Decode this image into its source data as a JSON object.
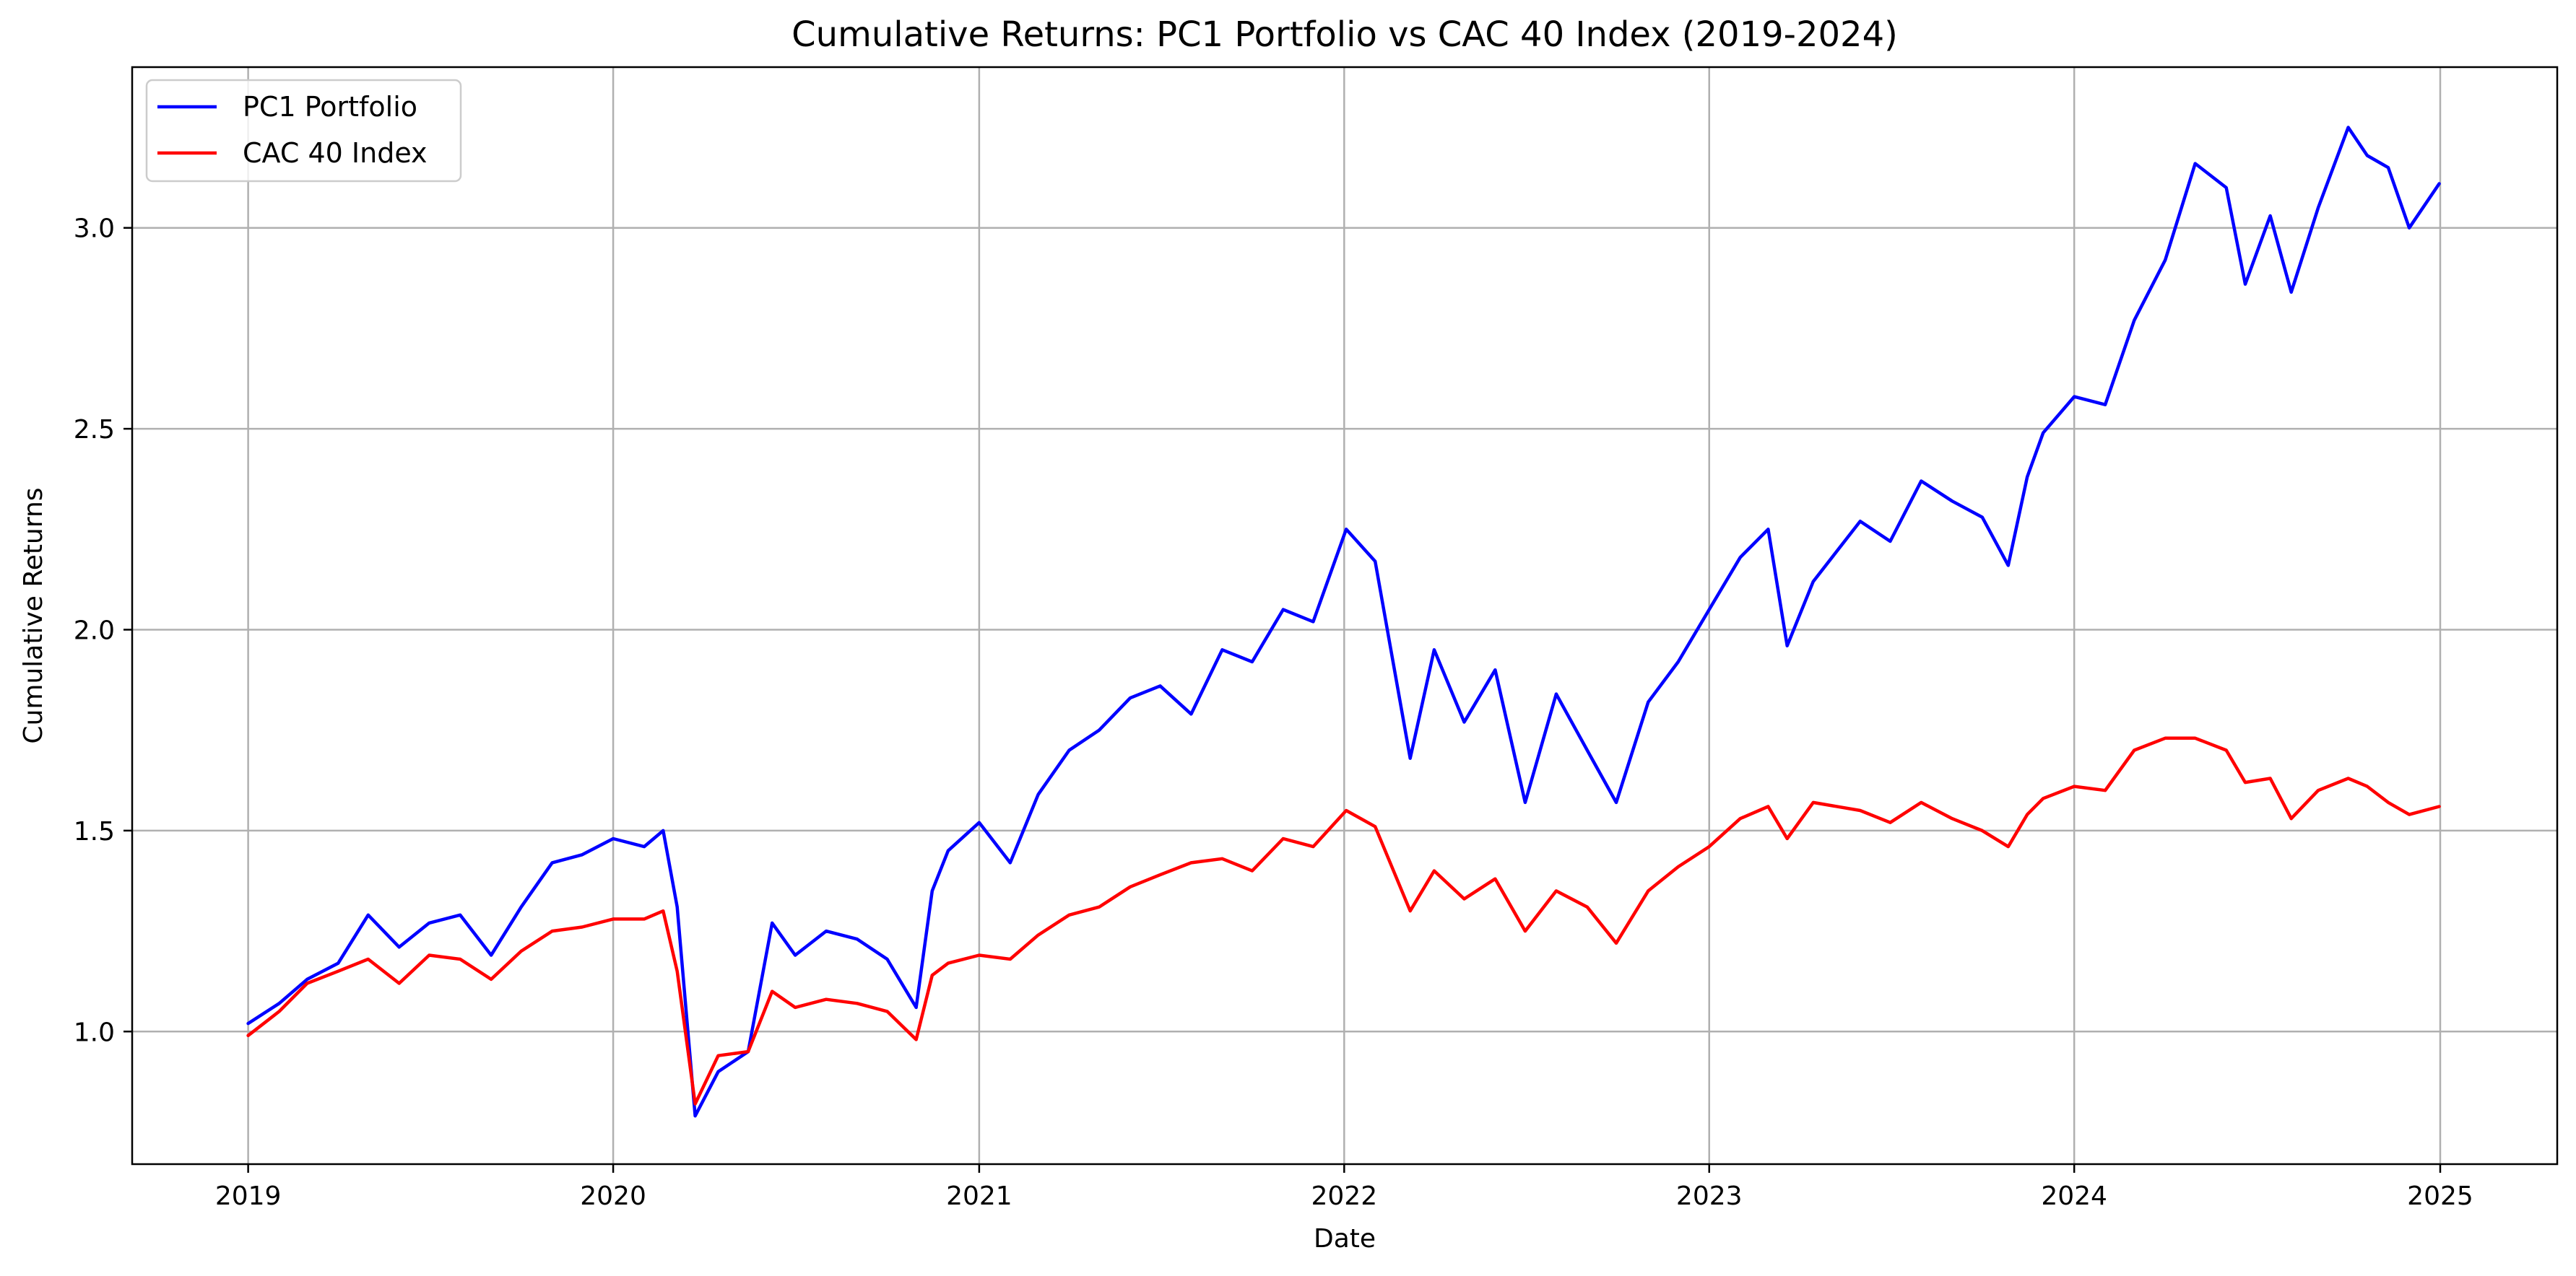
{
  "chart_data": {
    "type": "line",
    "title": "Cumulative Returns: PC1 Portfolio vs CAC 40 Index (2019-2024)",
    "xlabel": "Date",
    "ylabel": "Cumulative Returns",
    "xlim": [
      "2018-09-07",
      "2025-04-28"
    ],
    "ylim": [
      0.67,
      3.4
    ],
    "x_ticks": [
      "2019",
      "2020",
      "2021",
      "2022",
      "2023",
      "2024",
      "2025"
    ],
    "y_ticks": [
      "1.0",
      "1.5",
      "2.0",
      "2.5",
      "3.0"
    ],
    "grid": true,
    "legend_position": "top-left",
    "series": [
      {
        "name": "PC1 Portfolio",
        "color": "#0000ff",
        "points": [
          [
            "2019-01-01",
            1.02
          ],
          [
            "2019-02-01",
            1.07
          ],
          [
            "2019-03-01",
            1.13
          ],
          [
            "2019-04-01",
            1.17
          ],
          [
            "2019-05-01",
            1.29
          ],
          [
            "2019-06-01",
            1.21
          ],
          [
            "2019-07-01",
            1.27
          ],
          [
            "2019-08-01",
            1.29
          ],
          [
            "2019-09-01",
            1.19
          ],
          [
            "2019-10-01",
            1.31
          ],
          [
            "2019-11-01",
            1.42
          ],
          [
            "2019-12-01",
            1.44
          ],
          [
            "2020-01-01",
            1.48
          ],
          [
            "2020-02-01",
            1.46
          ],
          [
            "2020-02-20",
            1.5
          ],
          [
            "2020-03-05",
            1.31
          ],
          [
            "2020-03-23",
            0.79
          ],
          [
            "2020-04-15",
            0.9
          ],
          [
            "2020-05-15",
            0.95
          ],
          [
            "2020-06-08",
            1.27
          ],
          [
            "2020-07-01",
            1.19
          ],
          [
            "2020-08-01",
            1.25
          ],
          [
            "2020-09-01",
            1.23
          ],
          [
            "2020-10-01",
            1.18
          ],
          [
            "2020-10-30",
            1.06
          ],
          [
            "2020-11-15",
            1.35
          ],
          [
            "2020-12-01",
            1.45
          ],
          [
            "2021-01-01",
            1.52
          ],
          [
            "2021-02-01",
            1.42
          ],
          [
            "2021-03-01",
            1.59
          ],
          [
            "2021-04-01",
            1.7
          ],
          [
            "2021-05-01",
            1.75
          ],
          [
            "2021-06-01",
            1.83
          ],
          [
            "2021-07-01",
            1.86
          ],
          [
            "2021-08-01",
            1.79
          ],
          [
            "2021-09-01",
            1.95
          ],
          [
            "2021-10-01",
            1.92
          ],
          [
            "2021-11-01",
            2.05
          ],
          [
            "2021-12-01",
            2.02
          ],
          [
            "2022-01-03",
            2.25
          ],
          [
            "2022-02-01",
            2.17
          ],
          [
            "2022-03-08",
            1.68
          ],
          [
            "2022-04-01",
            1.95
          ],
          [
            "2022-05-01",
            1.77
          ],
          [
            "2022-06-01",
            1.9
          ],
          [
            "2022-07-01",
            1.57
          ],
          [
            "2022-08-01",
            1.84
          ],
          [
            "2022-09-01",
            1.7
          ],
          [
            "2022-09-30",
            1.57
          ],
          [
            "2022-11-01",
            1.82
          ],
          [
            "2022-12-01",
            1.92
          ],
          [
            "2023-01-01",
            2.05
          ],
          [
            "2023-02-01",
            2.18
          ],
          [
            "2023-03-01",
            2.25
          ],
          [
            "2023-03-20",
            1.96
          ],
          [
            "2023-04-15",
            2.12
          ],
          [
            "2023-06-01",
            2.27
          ],
          [
            "2023-07-01",
            2.22
          ],
          [
            "2023-08-01",
            2.37
          ],
          [
            "2023-09-01",
            2.32
          ],
          [
            "2023-10-01",
            2.28
          ],
          [
            "2023-10-27",
            2.16
          ],
          [
            "2023-11-15",
            2.38
          ],
          [
            "2023-12-01",
            2.49
          ],
          [
            "2024-01-01",
            2.58
          ],
          [
            "2024-02-01",
            2.56
          ],
          [
            "2024-03-01",
            2.77
          ],
          [
            "2024-04-01",
            2.92
          ],
          [
            "2024-05-01",
            3.16
          ],
          [
            "2024-06-01",
            3.1
          ],
          [
            "2024-06-20",
            2.86
          ],
          [
            "2024-07-15",
            3.03
          ],
          [
            "2024-08-05",
            2.84
          ],
          [
            "2024-09-01",
            3.05
          ],
          [
            "2024-10-01",
            3.25
          ],
          [
            "2024-10-20",
            3.18
          ],
          [
            "2024-11-10",
            3.15
          ],
          [
            "2024-12-01",
            3.0
          ],
          [
            "2024-12-31",
            3.11
          ]
        ]
      },
      {
        "name": "CAC 40 Index",
        "color": "#ff0000",
        "points": [
          [
            "2019-01-01",
            0.99
          ],
          [
            "2019-02-01",
            1.05
          ],
          [
            "2019-03-01",
            1.12
          ],
          [
            "2019-04-01",
            1.15
          ],
          [
            "2019-05-01",
            1.18
          ],
          [
            "2019-06-01",
            1.12
          ],
          [
            "2019-07-01",
            1.19
          ],
          [
            "2019-08-01",
            1.18
          ],
          [
            "2019-09-01",
            1.13
          ],
          [
            "2019-10-01",
            1.2
          ],
          [
            "2019-11-01",
            1.25
          ],
          [
            "2019-12-01",
            1.26
          ],
          [
            "2020-01-01",
            1.28
          ],
          [
            "2020-02-01",
            1.28
          ],
          [
            "2020-02-20",
            1.3
          ],
          [
            "2020-03-05",
            1.15
          ],
          [
            "2020-03-23",
            0.82
          ],
          [
            "2020-04-15",
            0.94
          ],
          [
            "2020-05-15",
            0.95
          ],
          [
            "2020-06-08",
            1.1
          ],
          [
            "2020-07-01",
            1.06
          ],
          [
            "2020-08-01",
            1.08
          ],
          [
            "2020-09-01",
            1.07
          ],
          [
            "2020-10-01",
            1.05
          ],
          [
            "2020-10-30",
            0.98
          ],
          [
            "2020-11-15",
            1.14
          ],
          [
            "2020-12-01",
            1.17
          ],
          [
            "2021-01-01",
            1.19
          ],
          [
            "2021-02-01",
            1.18
          ],
          [
            "2021-03-01",
            1.24
          ],
          [
            "2021-04-01",
            1.29
          ],
          [
            "2021-05-01",
            1.31
          ],
          [
            "2021-06-01",
            1.36
          ],
          [
            "2021-07-01",
            1.39
          ],
          [
            "2021-08-01",
            1.42
          ],
          [
            "2021-09-01",
            1.43
          ],
          [
            "2021-10-01",
            1.4
          ],
          [
            "2021-11-01",
            1.48
          ],
          [
            "2021-12-01",
            1.46
          ],
          [
            "2022-01-03",
            1.55
          ],
          [
            "2022-02-01",
            1.51
          ],
          [
            "2022-03-08",
            1.3
          ],
          [
            "2022-04-01",
            1.4
          ],
          [
            "2022-05-01",
            1.33
          ],
          [
            "2022-06-01",
            1.38
          ],
          [
            "2022-07-01",
            1.25
          ],
          [
            "2022-08-01",
            1.35
          ],
          [
            "2022-09-01",
            1.31
          ],
          [
            "2022-09-30",
            1.22
          ],
          [
            "2022-11-01",
            1.35
          ],
          [
            "2022-12-01",
            1.41
          ],
          [
            "2023-01-01",
            1.46
          ],
          [
            "2023-02-01",
            1.53
          ],
          [
            "2023-03-01",
            1.56
          ],
          [
            "2023-03-20",
            1.48
          ],
          [
            "2023-04-15",
            1.57
          ],
          [
            "2023-06-01",
            1.55
          ],
          [
            "2023-07-01",
            1.52
          ],
          [
            "2023-08-01",
            1.57
          ],
          [
            "2023-09-01",
            1.53
          ],
          [
            "2023-10-01",
            1.5
          ],
          [
            "2023-10-27",
            1.46
          ],
          [
            "2023-11-15",
            1.54
          ],
          [
            "2023-12-01",
            1.58
          ],
          [
            "2024-01-01",
            1.61
          ],
          [
            "2024-02-01",
            1.6
          ],
          [
            "2024-03-01",
            1.7
          ],
          [
            "2024-04-01",
            1.73
          ],
          [
            "2024-05-01",
            1.73
          ],
          [
            "2024-06-01",
            1.7
          ],
          [
            "2024-06-20",
            1.62
          ],
          [
            "2024-07-15",
            1.63
          ],
          [
            "2024-08-05",
            1.53
          ],
          [
            "2024-09-01",
            1.6
          ],
          [
            "2024-10-01",
            1.63
          ],
          [
            "2024-10-20",
            1.61
          ],
          [
            "2024-11-10",
            1.57
          ],
          [
            "2024-12-01",
            1.54
          ],
          [
            "2024-12-31",
            1.56
          ]
        ]
      }
    ]
  }
}
